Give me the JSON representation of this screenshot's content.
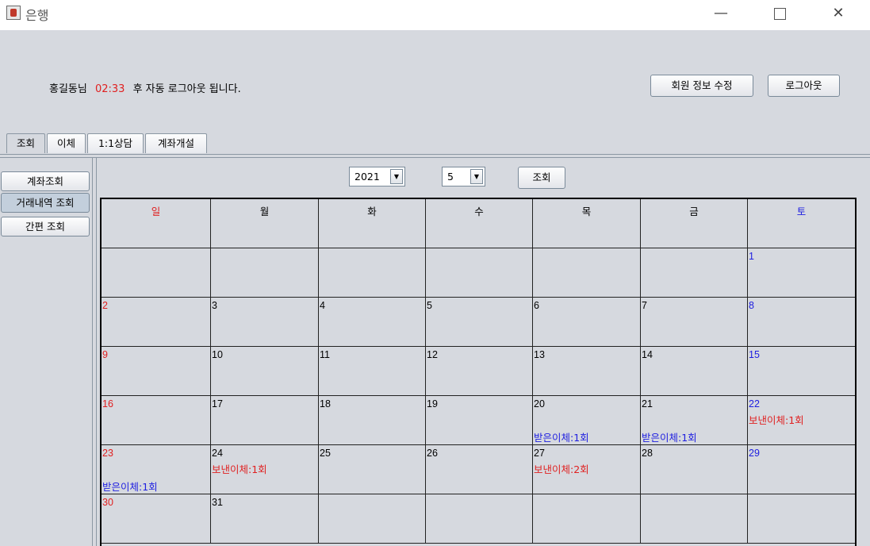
{
  "window": {
    "title": "은행",
    "minimize": "—",
    "close": "✕"
  },
  "header": {
    "user_label": "홍길동님",
    "timer": "02:33",
    "logout_notice": "후 자동 로그아웃 됩니다.",
    "edit_button": "회원 정보 수정",
    "logout_button": "로그아웃"
  },
  "tabs": [
    "조회",
    "이체",
    "1:1상담",
    "계좌개설"
  ],
  "sidebar": [
    "계좌조회",
    "거래내역 조회",
    "간편 조회"
  ],
  "controls": {
    "year": "2021",
    "month": "5",
    "search_button": "조회"
  },
  "weekdays": [
    "일",
    "월",
    "화",
    "수",
    "목",
    "금",
    "토"
  ],
  "calendar": {
    "weeks": [
      [
        null,
        null,
        null,
        null,
        null,
        null,
        {
          "day": "1"
        }
      ],
      [
        {
          "day": "2"
        },
        {
          "day": "3"
        },
        {
          "day": "4"
        },
        {
          "day": "5"
        },
        {
          "day": "6"
        },
        {
          "day": "7"
        },
        {
          "day": "8"
        }
      ],
      [
        {
          "day": "9"
        },
        {
          "day": "10"
        },
        {
          "day": "11"
        },
        {
          "day": "12"
        },
        {
          "day": "13"
        },
        {
          "day": "14"
        },
        {
          "day": "15"
        }
      ],
      [
        {
          "day": "16"
        },
        {
          "day": "17"
        },
        {
          "day": "18"
        },
        {
          "day": "19"
        },
        {
          "day": "20",
          "received": "받은이체:1회"
        },
        {
          "day": "21",
          "received": "받은이체:1회"
        },
        {
          "day": "22",
          "sent": "보낸이체:1회"
        }
      ],
      [
        {
          "day": "23",
          "received": "받은이체:1회"
        },
        {
          "day": "24",
          "sent": "보낸이체:1회"
        },
        {
          "day": "25"
        },
        {
          "day": "26"
        },
        {
          "day": "27",
          "sent": "보낸이체:2회"
        },
        {
          "day": "28"
        },
        {
          "day": "29"
        }
      ],
      [
        {
          "day": "30"
        },
        {
          "day": "31"
        },
        null,
        null,
        null,
        null,
        null
      ]
    ]
  },
  "colors": {
    "sunday": "#e02020",
    "saturday": "#2020e0",
    "received": "#2020e0",
    "sent": "#e02020",
    "timer": "#e02020"
  }
}
